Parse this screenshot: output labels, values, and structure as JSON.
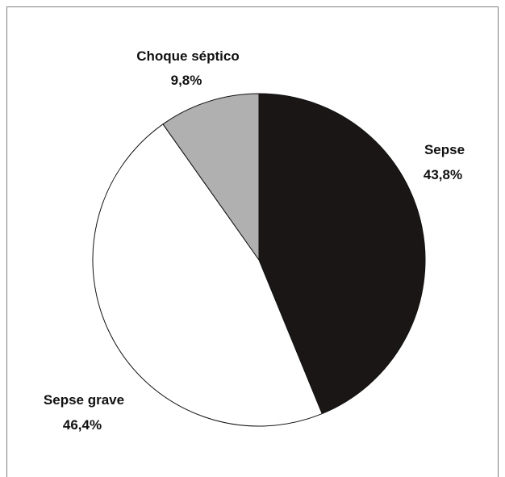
{
  "chart_data": {
    "type": "pie",
    "title": "",
    "slices": [
      {
        "label": "Sepse",
        "value": 43.8,
        "value_text": "43,8%",
        "color": "#1a1616"
      },
      {
        "label": "Sepse grave",
        "value": 46.4,
        "value_text": "46,4%",
        "color": "#ffffff"
      },
      {
        "label": "Choque séptico",
        "value": 9.8,
        "value_text": "9,8%",
        "color": "#b0b0b0"
      }
    ],
    "start_angle": "12 o'clock",
    "direction": "clockwise",
    "legend": "none"
  }
}
